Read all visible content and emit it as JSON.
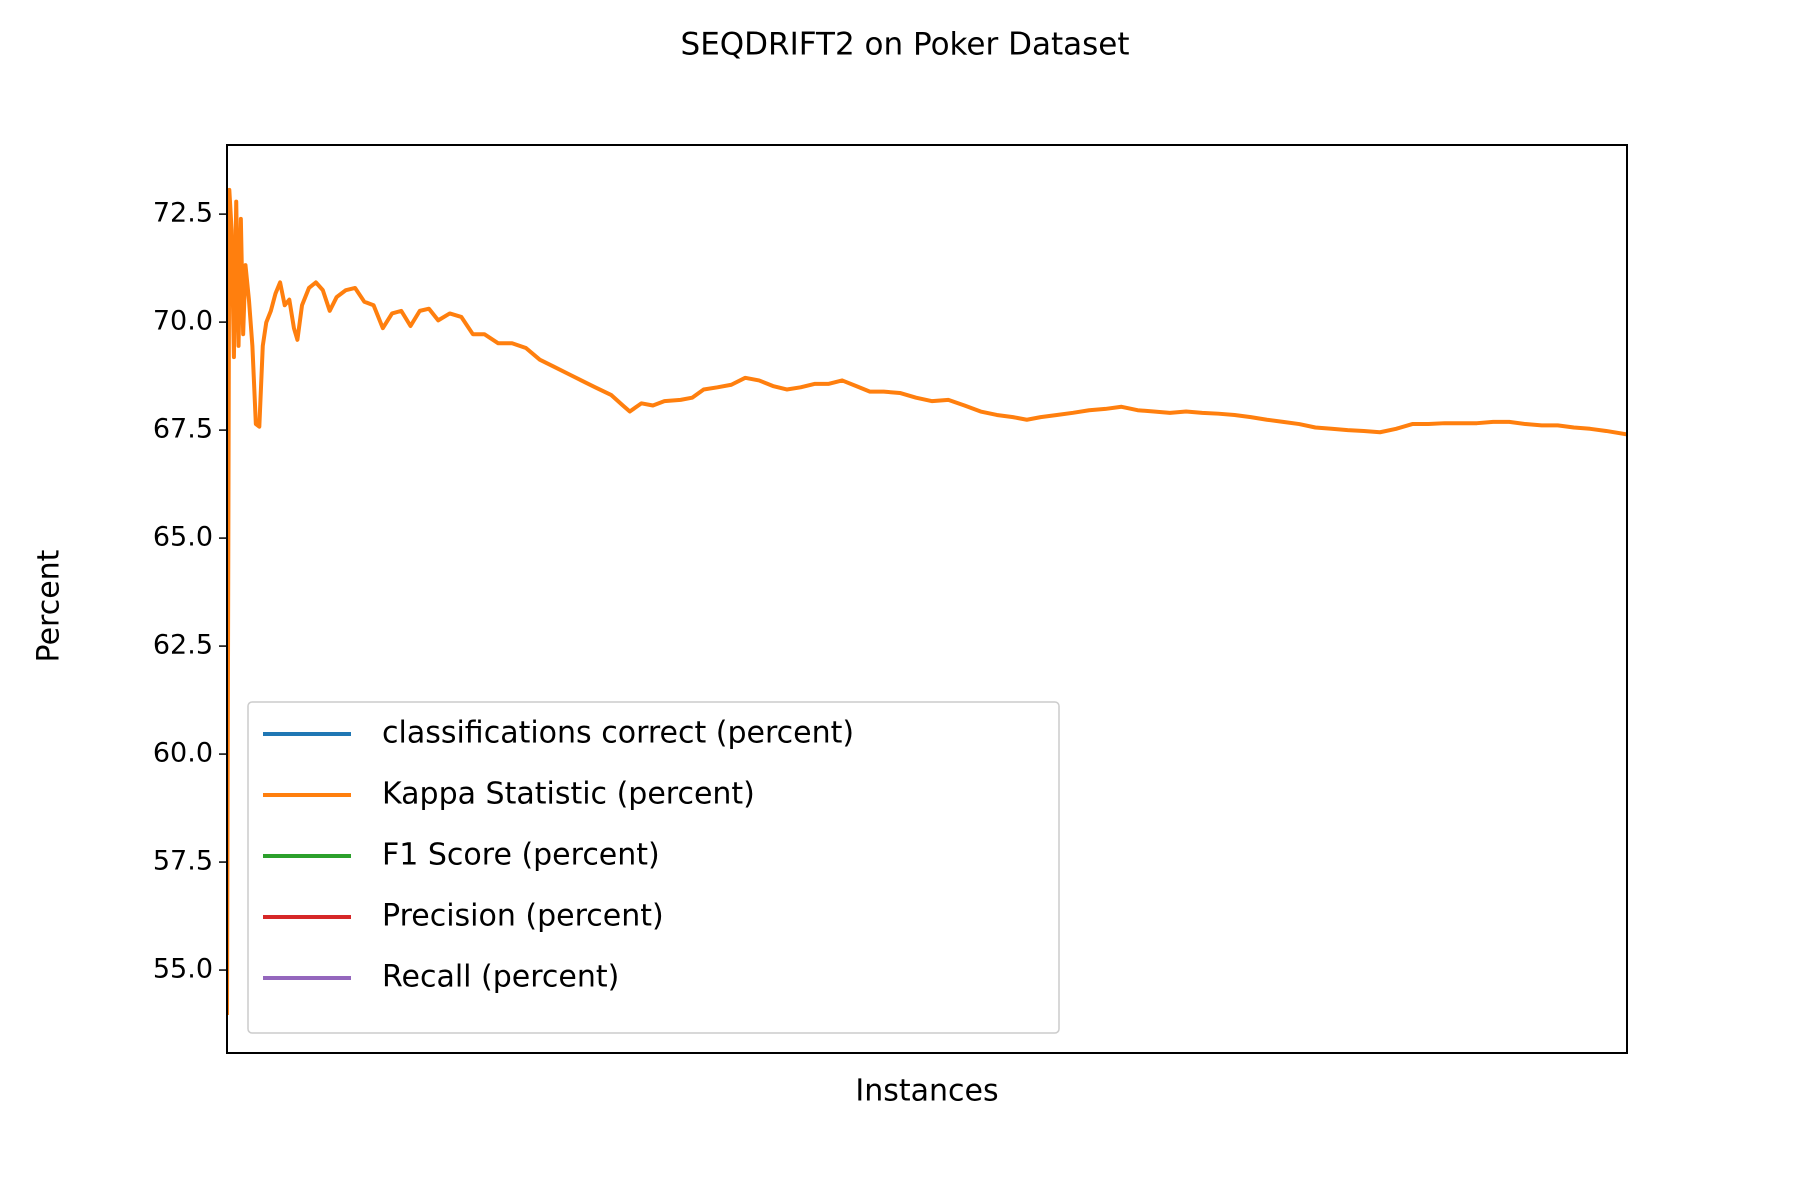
{
  "chart_data": {
    "type": "line",
    "title": "SEQDRIFT2 on Poker Dataset",
    "xlabel": "Instances",
    "ylabel": "Percent",
    "xlim": [
      0,
      1213
    ],
    "ylim": [
      53.08,
      74.1
    ],
    "yticks": [
      {
        "value": 55,
        "label": "55.0"
      },
      57.5,
      {
        "value": 60,
        "label": "60.0"
      },
      62.5,
      {
        "value": 65,
        "label": "65.0"
      },
      67.5,
      {
        "value": 70,
        "label": "70.0"
      },
      72.5
    ],
    "legend": "lower left",
    "series": [
      {
        "name": "classifications correct (percent)",
        "color": "#1f77b4"
      },
      {
        "name": "Kappa Statistic (percent)",
        "color": "#ff7f0e",
        "x": [
          0,
          2,
          4,
          6,
          8,
          10,
          12,
          14,
          16,
          19,
          22,
          25,
          28,
          31,
          34,
          38,
          42,
          46,
          50,
          54,
          58,
          61,
          65,
          71,
          77,
          83,
          89,
          95,
          103,
          111,
          119,
          127,
          135,
          143,
          151,
          159,
          167,
          175,
          183,
          193,
          203,
          213,
          223,
          235,
          247,
          259,
          271,
          283,
          295,
          307,
          319,
          333,
          343,
          349,
          359,
          369,
          379,
          393,
          403,
          413,
          425,
          437,
          449,
          461,
          473,
          485,
          497,
          509,
          521,
          533,
          545,
          557,
          569,
          583,
          597,
          611,
          625,
          639,
          653,
          667,
          681,
          693,
          705,
          719,
          733,
          747,
          761,
          775,
          789,
          803,
          817,
          831,
          845,
          859,
          873,
          887,
          901,
          915,
          929,
          943,
          957,
          971,
          985,
          999,
          1013,
          1027,
          1041,
          1055,
          1069,
          1083,
          1097,
          1111,
          1125,
          1139,
          1153,
          1167,
          1181,
          1195,
          1213
        ],
        "values": [
          53.96,
          73.06,
          72.13,
          69.19,
          72.79,
          69.45,
          72.39,
          69.72,
          71.32,
          70.52,
          69.45,
          67.64,
          67.58,
          69.45,
          69.99,
          70.26,
          70.66,
          70.92,
          70.39,
          70.52,
          69.86,
          69.59,
          70.39,
          70.79,
          70.92,
          70.74,
          70.26,
          70.58,
          70.74,
          70.79,
          70.47,
          70.39,
          69.86,
          70.2,
          70.26,
          69.91,
          70.26,
          70.31,
          70.04,
          70.2,
          70.12,
          69.72,
          69.72,
          69.51,
          69.51,
          69.4,
          69.13,
          68.97,
          68.81,
          68.65,
          68.49,
          68.31,
          68.07,
          67.93,
          68.12,
          68.07,
          68.17,
          68.2,
          68.25,
          68.44,
          68.49,
          68.55,
          68.71,
          68.65,
          68.52,
          68.44,
          68.49,
          68.57,
          68.57,
          68.65,
          68.52,
          68.39,
          68.39,
          68.36,
          68.25,
          68.17,
          68.2,
          68.07,
          67.93,
          67.85,
          67.8,
          67.74,
          67.8,
          67.85,
          67.9,
          67.96,
          67.99,
          68.04,
          67.96,
          67.93,
          67.9,
          67.93,
          67.9,
          67.88,
          67.85,
          67.8,
          67.74,
          67.69,
          67.64,
          67.56,
          67.53,
          67.5,
          67.48,
          67.45,
          67.53,
          67.64,
          67.64,
          67.66,
          67.66,
          67.66,
          67.69,
          67.69,
          67.64,
          67.61,
          67.61,
          67.56,
          67.53,
          67.48,
          67.4
        ]
      },
      {
        "name": "F1 Score (percent)",
        "color": "#2ca02c"
      },
      {
        "name": "Precision (percent)",
        "color": "#d62728"
      },
      {
        "name": "Recall (percent)",
        "color": "#9467bd"
      }
    ]
  }
}
